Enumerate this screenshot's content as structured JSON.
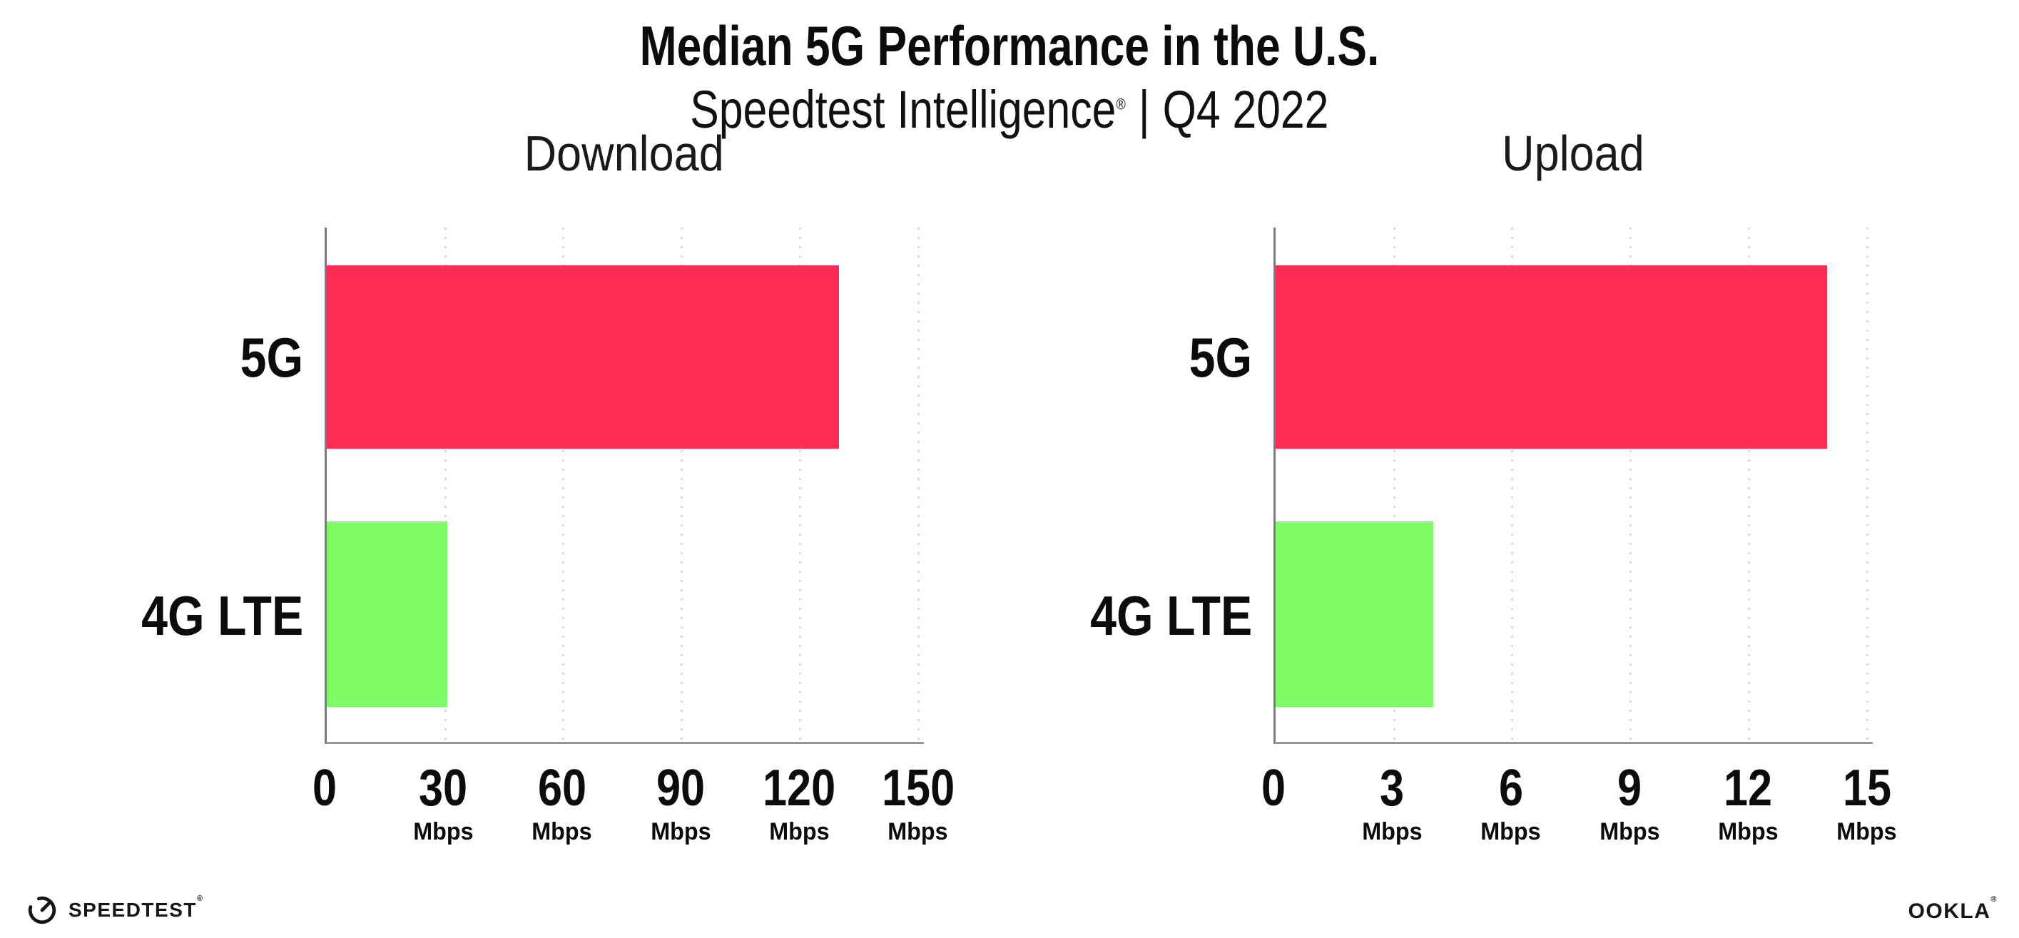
{
  "page": {
    "title": "Median 5G Performance in the U.S.",
    "subtitle_brand": "Speedtest Intelligence",
    "subtitle_reg_mark": "®",
    "subtitle_divider": "|",
    "subtitle_period": "Q4 2022",
    "background": "#ffffff"
  },
  "colors": {
    "bar_5g": "#ff2d55",
    "bar_4g_lte": "#7efc66",
    "gridline": "#d9d9e3",
    "y_axis": "#7a7a80",
    "x_axis": "#97979d",
    "text": "#0c0c0c"
  },
  "chart_data": [
    {
      "type": "bar",
      "orientation": "horizontal",
      "title": "Download",
      "categories": [
        "5G",
        "4G LTE"
      ],
      "values": [
        130,
        30.5
      ],
      "unit": "Mbps",
      "xticks": [
        0,
        30,
        60,
        90,
        120,
        150
      ],
      "xlim": [
        0,
        151.5
      ],
      "series_colors": [
        "#ff2d55",
        "#7efc66"
      ],
      "grid": "vertical-dotted",
      "legend": "none"
    },
    {
      "type": "bar",
      "orientation": "horizontal",
      "title": "Upload",
      "categories": [
        "5G",
        "4G LTE"
      ],
      "values": [
        14,
        4
      ],
      "unit": "Mbps",
      "xticks": [
        0,
        3,
        6,
        9,
        12,
        15
      ],
      "xlim": [
        0,
        15.15
      ],
      "series_colors": [
        "#ff2d55",
        "#7efc66"
      ],
      "grid": "vertical-dotted",
      "legend": "none"
    }
  ],
  "footer": {
    "speedtest_wordmark": "SPEEDTEST",
    "speedtest_reg_mark": "®",
    "ookla_wordmark": "OOKLA",
    "ookla_reg_mark": "®"
  }
}
